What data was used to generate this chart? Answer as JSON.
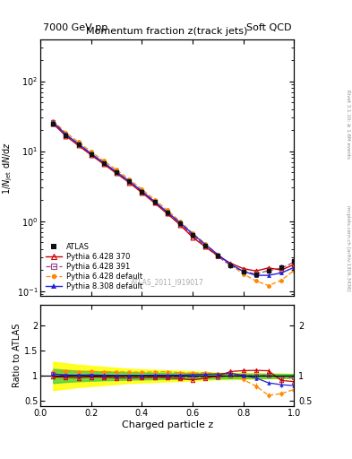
{
  "title_top_left": "7000 GeV pp",
  "title_top_right": "Soft QCD",
  "plot_title": "Momentum fraction z(track jets)",
  "xlabel": "Charged particle z",
  "ylabel_main": "1/N$_{jet}$ dN/dz",
  "ylabel_ratio": "Ratio to ATLAS",
  "watermark": "ATLAS_2011_I919017",
  "right_label": "mcplots.cern.ch [arXiv:1306.3436]",
  "right_label2": "Rivet 3.1.10; ≥ 1.6M events",
  "xlim": [
    0.0,
    1.0
  ],
  "ylim_main": [
    0.085,
    400
  ],
  "ylim_ratio": [
    0.4,
    2.4
  ],
  "z_values": [
    0.05,
    0.1,
    0.15,
    0.2,
    0.25,
    0.3,
    0.35,
    0.4,
    0.45,
    0.5,
    0.55,
    0.6,
    0.65,
    0.7,
    0.75,
    0.8,
    0.85,
    0.9,
    0.95,
    1.0
  ],
  "atlas_y": [
    25,
    17,
    12.5,
    9.0,
    6.7,
    5.0,
    3.7,
    2.65,
    1.88,
    1.33,
    0.94,
    0.64,
    0.45,
    0.32,
    0.23,
    0.19,
    0.175,
    0.195,
    0.22,
    0.27
  ],
  "atlas_yerr": [
    1.2,
    0.8,
    0.55,
    0.4,
    0.3,
    0.22,
    0.17,
    0.12,
    0.09,
    0.06,
    0.045,
    0.032,
    0.024,
    0.018,
    0.014,
    0.013,
    0.013,
    0.015,
    0.018,
    0.025
  ],
  "p6_370_y": [
    24.5,
    16.5,
    12.0,
    8.8,
    6.5,
    4.8,
    3.55,
    2.55,
    1.82,
    1.28,
    0.89,
    0.59,
    0.43,
    0.32,
    0.25,
    0.21,
    0.194,
    0.215,
    0.2,
    0.24
  ],
  "p6_391_y": [
    26,
    17.2,
    12.5,
    9.1,
    6.65,
    4.95,
    3.66,
    2.62,
    1.86,
    1.31,
    0.912,
    0.623,
    0.444,
    0.312,
    0.232,
    0.192,
    0.175,
    0.197,
    0.212,
    0.26
  ],
  "p6_def_y": [
    27,
    18.5,
    13.5,
    9.8,
    7.25,
    5.4,
    3.98,
    2.85,
    2.03,
    1.44,
    1.0,
    0.675,
    0.48,
    0.332,
    0.238,
    0.176,
    0.14,
    0.12,
    0.143,
    0.197
  ],
  "p8_def_y": [
    26,
    17.3,
    12.7,
    9.2,
    6.8,
    5.05,
    3.74,
    2.68,
    1.91,
    1.35,
    0.955,
    0.656,
    0.465,
    0.332,
    0.242,
    0.192,
    0.168,
    0.168,
    0.182,
    0.218
  ],
  "color_atlas": "#111111",
  "color_p6_370": "#cc0000",
  "color_p6_391": "#994488",
  "color_p6_def": "#ff8800",
  "color_p8_def": "#2222dd",
  "ratio_p6_370": [
    0.98,
    0.97,
    0.96,
    0.978,
    0.97,
    0.96,
    0.96,
    0.962,
    0.968,
    0.963,
    0.947,
    0.922,
    0.956,
    1.0,
    1.087,
    1.105,
    1.11,
    1.102,
    0.909,
    0.889
  ],
  "ratio_p6_370_err": [
    0.03,
    0.025,
    0.022,
    0.02,
    0.018,
    0.017,
    0.016,
    0.015,
    0.015,
    0.015,
    0.015,
    0.016,
    0.018,
    0.022,
    0.028,
    0.033,
    0.038,
    0.042,
    0.05,
    0.06
  ],
  "ratio_p6_391": [
    1.04,
    1.013,
    1.0,
    1.011,
    0.993,
    0.99,
    0.99,
    0.989,
    0.989,
    0.985,
    0.97,
    0.973,
    0.987,
    0.975,
    1.009,
    1.011,
    1.0,
    1.01,
    0.964,
    0.963
  ],
  "ratio_p6_391_err": [
    0.03,
    0.025,
    0.02,
    0.018,
    0.016,
    0.015,
    0.015,
    0.014,
    0.014,
    0.014,
    0.014,
    0.015,
    0.017,
    0.021,
    0.027,
    0.032,
    0.037,
    0.041,
    0.049,
    0.058
  ],
  "ratio_p6_def": [
    1.08,
    1.088,
    1.08,
    1.089,
    1.082,
    1.08,
    1.076,
    1.075,
    1.08,
    1.083,
    1.064,
    1.055,
    1.067,
    1.038,
    1.035,
    0.926,
    0.8,
    0.615,
    0.65,
    0.73
  ],
  "ratio_p6_def_err": [
    0.04,
    0.035,
    0.03,
    0.028,
    0.026,
    0.024,
    0.023,
    0.022,
    0.022,
    0.022,
    0.022,
    0.024,
    0.027,
    0.033,
    0.042,
    0.05,
    0.055,
    0.055,
    0.06,
    0.07
  ],
  "ratio_p8_def": [
    1.04,
    1.018,
    1.016,
    1.022,
    1.015,
    1.01,
    1.011,
    1.011,
    1.016,
    1.015,
    1.016,
    1.025,
    1.033,
    1.038,
    1.052,
    1.011,
    0.96,
    0.862,
    0.827,
    0.807
  ],
  "ratio_p8_def_err": [
    0.03,
    0.025,
    0.022,
    0.02,
    0.018,
    0.017,
    0.016,
    0.015,
    0.015,
    0.015,
    0.015,
    0.016,
    0.018,
    0.022,
    0.028,
    0.033,
    0.038,
    0.042,
    0.05,
    0.06
  ],
  "band_yellow_lo": [
    0.72,
    0.75,
    0.78,
    0.8,
    0.82,
    0.84,
    0.86,
    0.87,
    0.88,
    0.89,
    0.9,
    0.91,
    0.92,
    0.93,
    0.935,
    0.94,
    0.945,
    0.95,
    0.955,
    0.96
  ],
  "band_yellow_hi": [
    1.28,
    1.25,
    1.22,
    1.2,
    1.18,
    1.16,
    1.14,
    1.13,
    1.12,
    1.11,
    1.1,
    1.09,
    1.08,
    1.07,
    1.065,
    1.06,
    1.055,
    1.05,
    1.045,
    1.04
  ],
  "band_green_lo": [
    0.86,
    0.88,
    0.895,
    0.905,
    0.913,
    0.92,
    0.926,
    0.93,
    0.935,
    0.938,
    0.941,
    0.944,
    0.947,
    0.95,
    0.952,
    0.954,
    0.956,
    0.958,
    0.96,
    0.962
  ],
  "band_green_hi": [
    1.14,
    1.12,
    1.105,
    1.095,
    1.087,
    1.08,
    1.074,
    1.07,
    1.065,
    1.062,
    1.059,
    1.056,
    1.053,
    1.05,
    1.048,
    1.046,
    1.044,
    1.042,
    1.04,
    1.038
  ],
  "figsize": [
    3.93,
    5.12
  ],
  "dpi": 100
}
